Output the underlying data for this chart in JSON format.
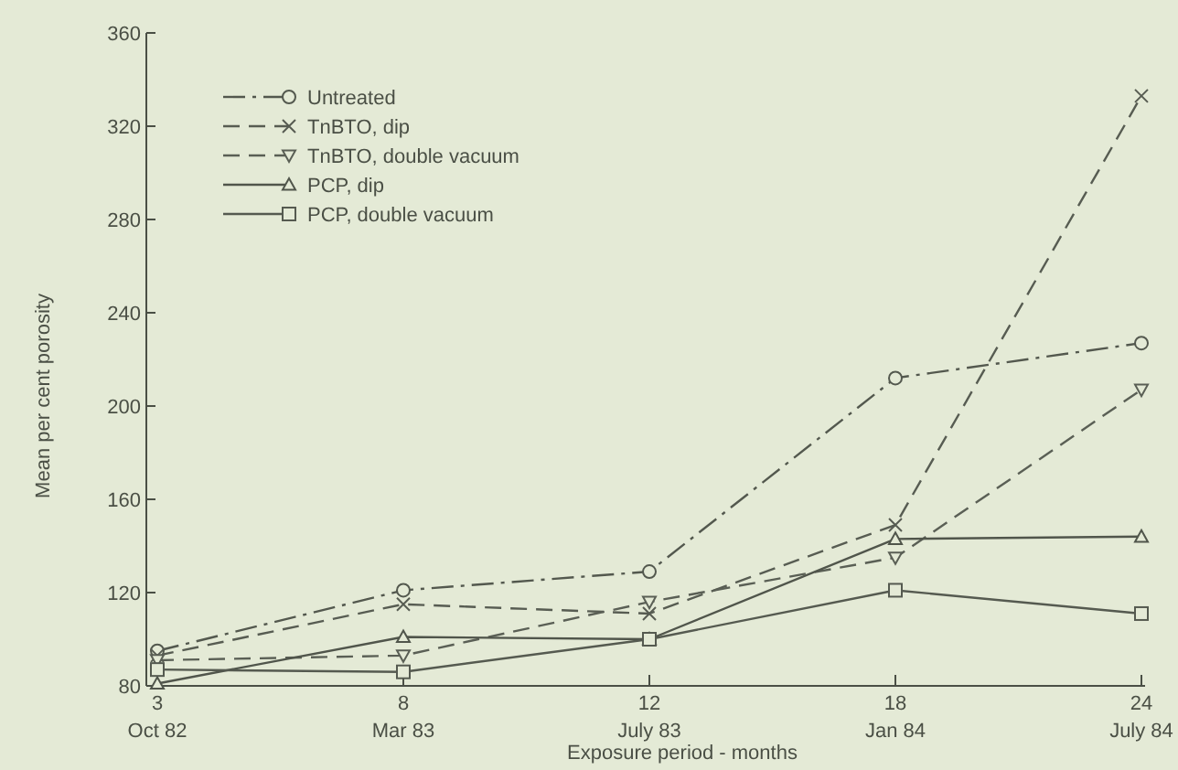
{
  "chart_data": {
    "type": "line",
    "xlabel": "Exposure period - months",
    "ylabel": "Mean per cent porosity",
    "categories": [
      "3\nOct 82",
      "8\nMar 83",
      "12\nJuly 83",
      "18\nJan 84",
      "24\nJuly 84"
    ],
    "ylim": [
      80,
      360
    ],
    "yticks": [
      80,
      120,
      160,
      200,
      240,
      280,
      320,
      360
    ],
    "grid": false,
    "legend": "top left",
    "series": [
      {
        "name": "Untreated",
        "color": "#53584e",
        "marker": "circle",
        "line_style": "dashdot",
        "values": [
          95,
          121,
          129,
          212,
          227
        ]
      },
      {
        "name": "TnBTO, dip",
        "color": "#575c52",
        "marker": "cross",
        "line_style": "dashed",
        "values": [
          93,
          115,
          111,
          149,
          333
        ]
      },
      {
        "name": "TnBTO, double vacuum",
        "color": "#5a5f55",
        "marker": "triangle_down",
        "line_style": "dashed",
        "values": [
          91,
          93,
          116,
          135,
          207
        ]
      },
      {
        "name": "PCP, dip",
        "color": "#50554b",
        "marker": "triangle",
        "line_style": "solid",
        "values": [
          81,
          101,
          100,
          143,
          144
        ]
      },
      {
        "name": "PCP, double vacuum",
        "color": "#555a50",
        "marker": "square",
        "line_style": "solid",
        "values": [
          87,
          86,
          100,
          121,
          111
        ]
      }
    ]
  }
}
